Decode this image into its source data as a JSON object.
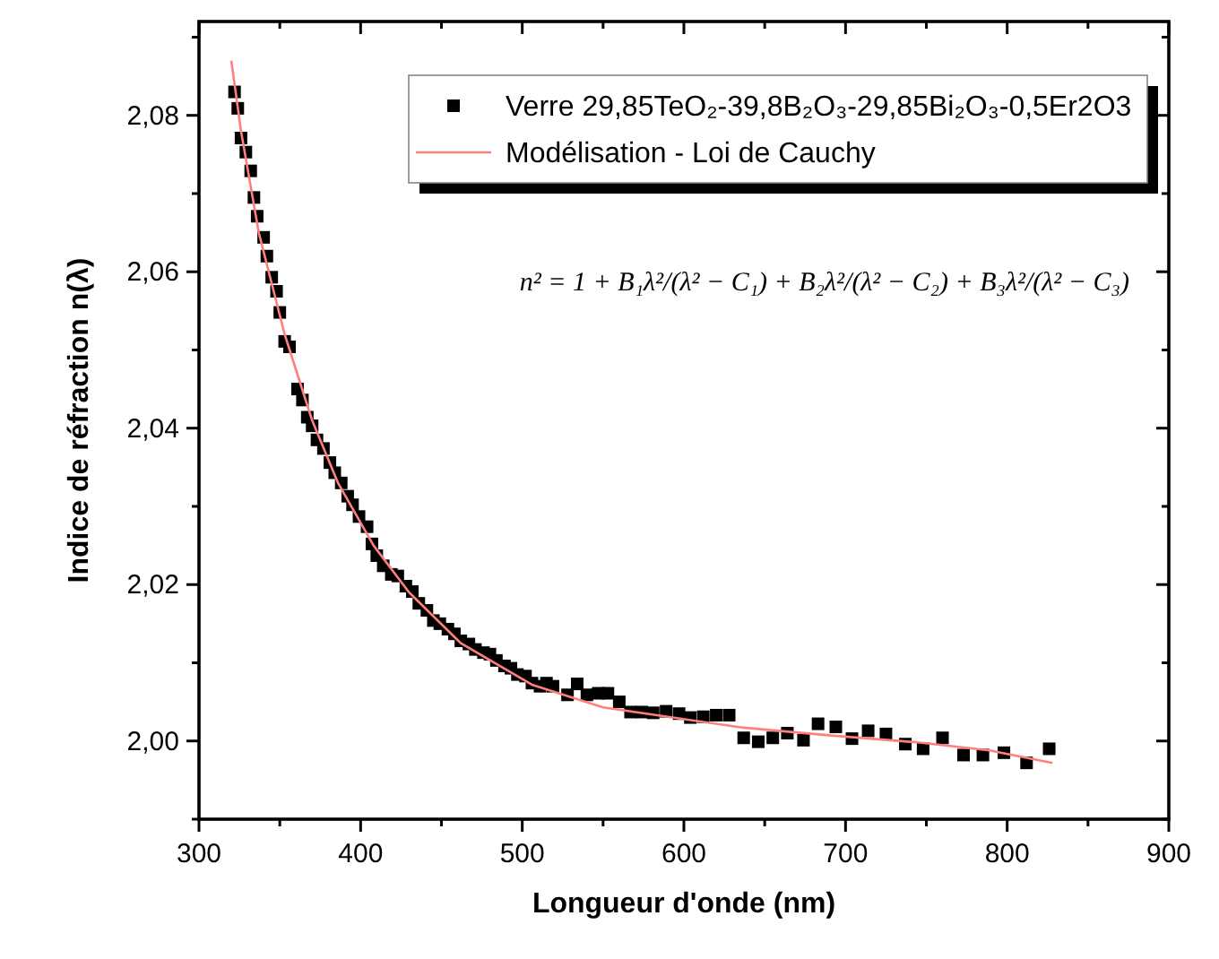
{
  "chart_data": {
    "type": "scatter",
    "xlabel": "Longueur d'onde (nm)",
    "ylabel": "Indice de réfraction n(λ)",
    "xlim": [
      300,
      900
    ],
    "ylim": [
      1.99,
      2.092
    ],
    "xticks": [
      300,
      {
        "value": 350,
        "label": null
      },
      400,
      {
        "value": 450,
        "label": null
      },
      500,
      {
        "value": 550,
        "label": null
      },
      600,
      {
        "value": 650,
        "label": null
      },
      700,
      {
        "value": 750,
        "label": null
      },
      800,
      {
        "value": 850,
        "label": null
      },
      900
    ],
    "yticks": [
      {
        "value": 1.99,
        "label": null
      },
      {
        "value": 2.0,
        "label": "2,00"
      },
      {
        "value": 2.01,
        "label": null
      },
      {
        "value": 2.02,
        "label": "2,02"
      },
      {
        "value": 2.03,
        "label": null
      },
      {
        "value": 2.04,
        "label": "2,04"
      },
      {
        "value": 2.05,
        "label": null
      },
      {
        "value": 2.06,
        "label": "2,06"
      },
      {
        "value": 2.07,
        "label": null
      },
      {
        "value": 2.08,
        "label": "2,08"
      },
      {
        "value": 2.09,
        "label": null
      }
    ],
    "grid": false,
    "legend": "top right",
    "annotations": [
      "n² = 1 + B₁λ²/(λ² − C₁) + B₂λ²/(λ² − C₂) + B₃λ²/(λ² − C₃)"
    ],
    "series": [
      {
        "name": "Verre 29,85TeO₂-39,8B₂O₃-29,85Bi₂O₃-0,5Er2O3",
        "color": "#000000",
        "marker": "square",
        "x": [
          322,
          324,
          326,
          329,
          332,
          334,
          336,
          340,
          342,
          345,
          348,
          350,
          353,
          356,
          361,
          364,
          367,
          370,
          373,
          377,
          381,
          384,
          388,
          392,
          395,
          399,
          404,
          407,
          410,
          414,
          419,
          423,
          428,
          432,
          436,
          441,
          445,
          449,
          454,
          458,
          462,
          467,
          471,
          476,
          480,
          484,
          489,
          493,
          497,
          502,
          506,
          511,
          515,
          519,
          528,
          534,
          540,
          547,
          553,
          560,
          567,
          574,
          581,
          589,
          597,
          604,
          612,
          620,
          628,
          637,
          646,
          655,
          664,
          674,
          683,
          694,
          704,
          714,
          725,
          737,
          748,
          760,
          773,
          785,
          798,
          812,
          826
        ],
        "values": [
          2.083,
          2.0809,
          2.0771,
          2.0753,
          2.0729,
          2.0695,
          2.0671,
          2.0644,
          2.062,
          2.0593,
          2.0575,
          2.0548,
          2.0511,
          2.0504,
          2.045,
          2.0436,
          2.0414,
          2.0403,
          2.0385,
          2.0374,
          2.0356,
          2.0343,
          2.033,
          2.0313,
          2.0302,
          2.0287,
          2.0274,
          2.0252,
          2.0237,
          2.0224,
          2.0213,
          2.0211,
          2.0198,
          2.0191,
          2.0176,
          2.0167,
          2.0154,
          2.015,
          2.0143,
          2.0137,
          2.0128,
          2.0124,
          2.0117,
          2.0113,
          2.0111,
          2.0103,
          2.0096,
          2.0093,
          2.0085,
          2.0083,
          2.0074,
          2.007,
          2.0074,
          2.007,
          2.0059,
          2.0073,
          2.0059,
          2.0061,
          2.0061,
          2.005,
          2.0037,
          2.0037,
          2.0036,
          2.0038,
          2.0035,
          2.003,
          2.0031,
          2.0033,
          2.0033,
          2.0004,
          1.9999,
          2.0004,
          2.001,
          2.0001,
          2.0022,
          2.0018,
          2.0003,
          2.0013,
          2.0009,
          1.9996,
          1.999,
          2.0004,
          1.9982,
          1.9982,
          1.9985,
          1.9972,
          1.999
        ]
      },
      {
        "type": "line",
        "name": "Modélisation - Loi de Cauchy",
        "color": "#ff7f7f",
        "marker": "none",
        "line_style": "solid",
        "x": [
          320,
          326,
          337,
          353,
          370,
          386,
          408,
          430,
          462,
          506,
          550,
          593,
          637,
          691,
          746,
          789,
          828
        ],
        "values": [
          2.087,
          2.078,
          2.065,
          2.052,
          2.041,
          2.033,
          2.025,
          2.019,
          2.0125,
          2.0072,
          2.0043,
          2.003,
          2.0017,
          2.0007,
          1.9998,
          1.9988,
          1.9972
        ]
      }
    ]
  }
}
